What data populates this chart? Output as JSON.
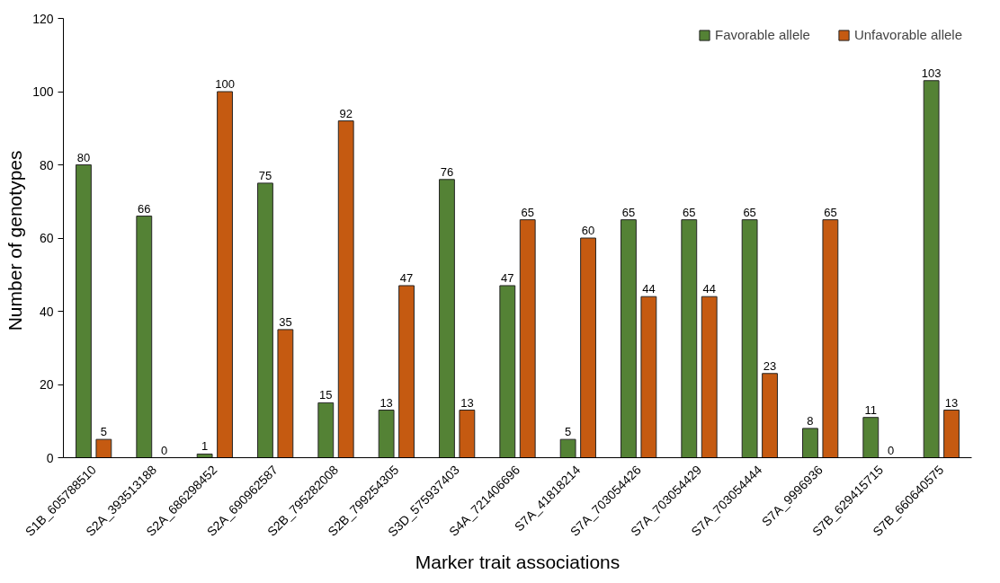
{
  "chart_data": {
    "type": "bar",
    "xlabel": "Marker trait associations",
    "ylabel": "Number  of genotypes",
    "categories": [
      "S1B_605788510",
      "S2A_393513188",
      "S2A_686298452",
      "S2A_690962587",
      "S2B_795282008",
      "S2B_799254305",
      "S3D_575937403",
      "S4A_721406696",
      "S7A_41818214",
      "S7A_703054426",
      "S7A_703054429",
      "S7A_703054444",
      "S7A_9996936",
      "S7B_629415715",
      "S7B_660640575"
    ],
    "series": [
      {
        "name": "Favorable allele",
        "color": "#548235",
        "values": [
          80,
          66,
          1,
          75,
          15,
          13,
          76,
          47,
          5,
          65,
          65,
          65,
          8,
          11,
          103
        ]
      },
      {
        "name": "Unfavorable allele",
        "color": "#c55a11",
        "values": [
          5,
          0,
          100,
          35,
          92,
          47,
          13,
          65,
          60,
          44,
          44,
          23,
          65,
          0,
          13
        ]
      }
    ],
    "ylim": [
      0,
      120
    ],
    "yticks": [
      0,
      20,
      40,
      60,
      80,
      100,
      120
    ],
    "grid": false,
    "legend": "top right",
    "data_labels": true
  }
}
